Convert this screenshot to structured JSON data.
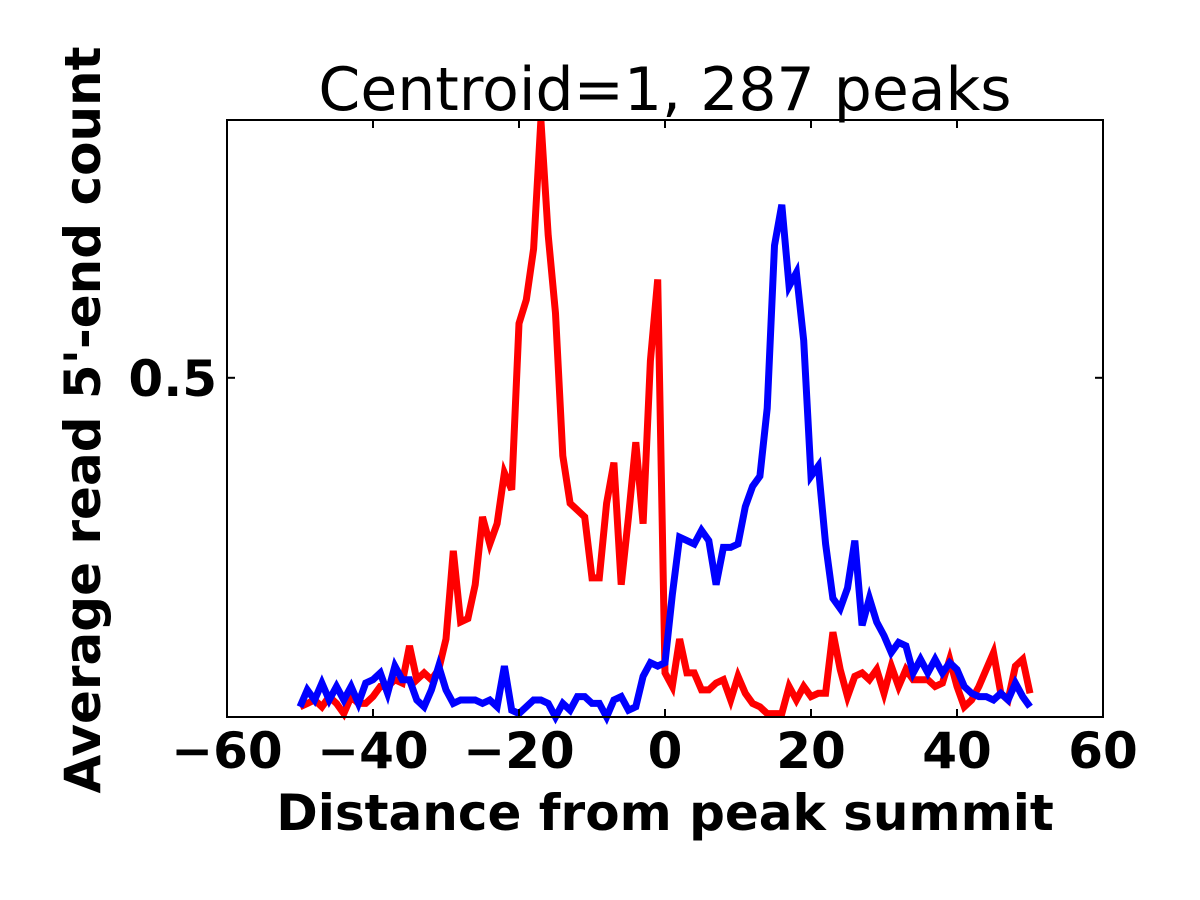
{
  "chart_data": {
    "type": "line",
    "title": "Centroid=1, 287 peaks",
    "xlabel": "Distance from peak summit",
    "ylabel": "Average read 5'-end count",
    "xlim": [
      -60,
      60
    ],
    "ylim": [
      0.0,
      0.88
    ],
    "xticks": [
      -60,
      -40,
      -20,
      0,
      20,
      40,
      60
    ],
    "xtick_labels": [
      "−60",
      "−40",
      "−20",
      "0",
      "20",
      "40",
      "60"
    ],
    "yticks": [
      0.5
    ],
    "ytick_labels": [
      "0.5"
    ],
    "grid": false,
    "legend": "none",
    "x": [
      -50,
      -49,
      -48,
      -47,
      -46,
      -45,
      -44,
      -43,
      -42,
      -41,
      -40,
      -39,
      -38,
      -37,
      -36,
      -35,
      -34,
      -33,
      -32,
      -31,
      -30,
      -29,
      -28,
      -27,
      -26,
      -25,
      -24,
      -23,
      -22,
      -21,
      -20,
      -19,
      -18,
      -17,
      -16,
      -15,
      -14,
      -13,
      -12,
      -11,
      -10,
      -9,
      -8,
      -7,
      -6,
      -5,
      -4,
      -3,
      -2,
      -1,
      0,
      1,
      2,
      3,
      4,
      5,
      6,
      7,
      8,
      9,
      10,
      11,
      12,
      13,
      14,
      15,
      16,
      17,
      18,
      19,
      20,
      21,
      22,
      23,
      24,
      25,
      26,
      27,
      28,
      29,
      30,
      31,
      32,
      33,
      34,
      35,
      36,
      37,
      38,
      39,
      40,
      41,
      42,
      43,
      44,
      45,
      46,
      47,
      48,
      49,
      50
    ],
    "series": [
      {
        "color": "#ff0000",
        "values": [
          0.015,
          0.02,
          0.025,
          0.015,
          0.03,
          0.02,
          0.005,
          0.03,
          0.02,
          0.02,
          0.03,
          0.045,
          0.045,
          0.055,
          0.05,
          0.105,
          0.055,
          0.065,
          0.055,
          0.07,
          0.115,
          0.245,
          0.14,
          0.145,
          0.195,
          0.295,
          0.255,
          0.285,
          0.36,
          0.335,
          0.58,
          0.615,
          0.69,
          0.88,
          0.71,
          0.595,
          0.385,
          0.315,
          0.305,
          0.295,
          0.205,
          0.205,
          0.315,
          0.375,
          0.195,
          0.295,
          0.405,
          0.285,
          0.525,
          0.645,
          0.065,
          0.045,
          0.115,
          0.065,
          0.065,
          0.04,
          0.04,
          0.05,
          0.055,
          0.025,
          0.06,
          0.035,
          0.02,
          0.015,
          0.005,
          0.005,
          0.005,
          0.045,
          0.025,
          0.045,
          0.03,
          0.035,
          0.035,
          0.125,
          0.07,
          0.03,
          0.06,
          0.065,
          0.055,
          0.07,
          0.035,
          0.075,
          0.045,
          0.07,
          0.055,
          0.055,
          0.055,
          0.045,
          0.05,
          0.085,
          0.045,
          0.015,
          0.025,
          0.045,
          0.07,
          0.095,
          0.035,
          0.025,
          0.075,
          0.085,
          0.035
        ],
        "line_width": 8
      },
      {
        "color": "#0000ff",
        "values": [
          0.015,
          0.04,
          0.025,
          0.05,
          0.025,
          0.045,
          0.025,
          0.045,
          0.02,
          0.05,
          0.055,
          0.065,
          0.035,
          0.075,
          0.055,
          0.055,
          0.025,
          0.015,
          0.04,
          0.075,
          0.04,
          0.02,
          0.025,
          0.025,
          0.025,
          0.02,
          0.025,
          0.015,
          0.075,
          0.01,
          0.005,
          0.015,
          0.025,
          0.025,
          0.02,
          0.0,
          0.02,
          0.01,
          0.03,
          0.03,
          0.02,
          0.02,
          0.0,
          0.025,
          0.03,
          0.01,
          0.015,
          0.06,
          0.08,
          0.075,
          0.08,
          0.18,
          0.265,
          0.26,
          0.255,
          0.275,
          0.26,
          0.195,
          0.25,
          0.25,
          0.255,
          0.31,
          0.34,
          0.355,
          0.455,
          0.695,
          0.755,
          0.635,
          0.655,
          0.555,
          0.355,
          0.37,
          0.255,
          0.175,
          0.16,
          0.19,
          0.26,
          0.135,
          0.175,
          0.14,
          0.12,
          0.095,
          0.11,
          0.105,
          0.065,
          0.085,
          0.065,
          0.085,
          0.065,
          0.08,
          0.07,
          0.045,
          0.035,
          0.03,
          0.03,
          0.025,
          0.035,
          0.025,
          0.05,
          0.03,
          0.015
        ]
      }
    ]
  }
}
